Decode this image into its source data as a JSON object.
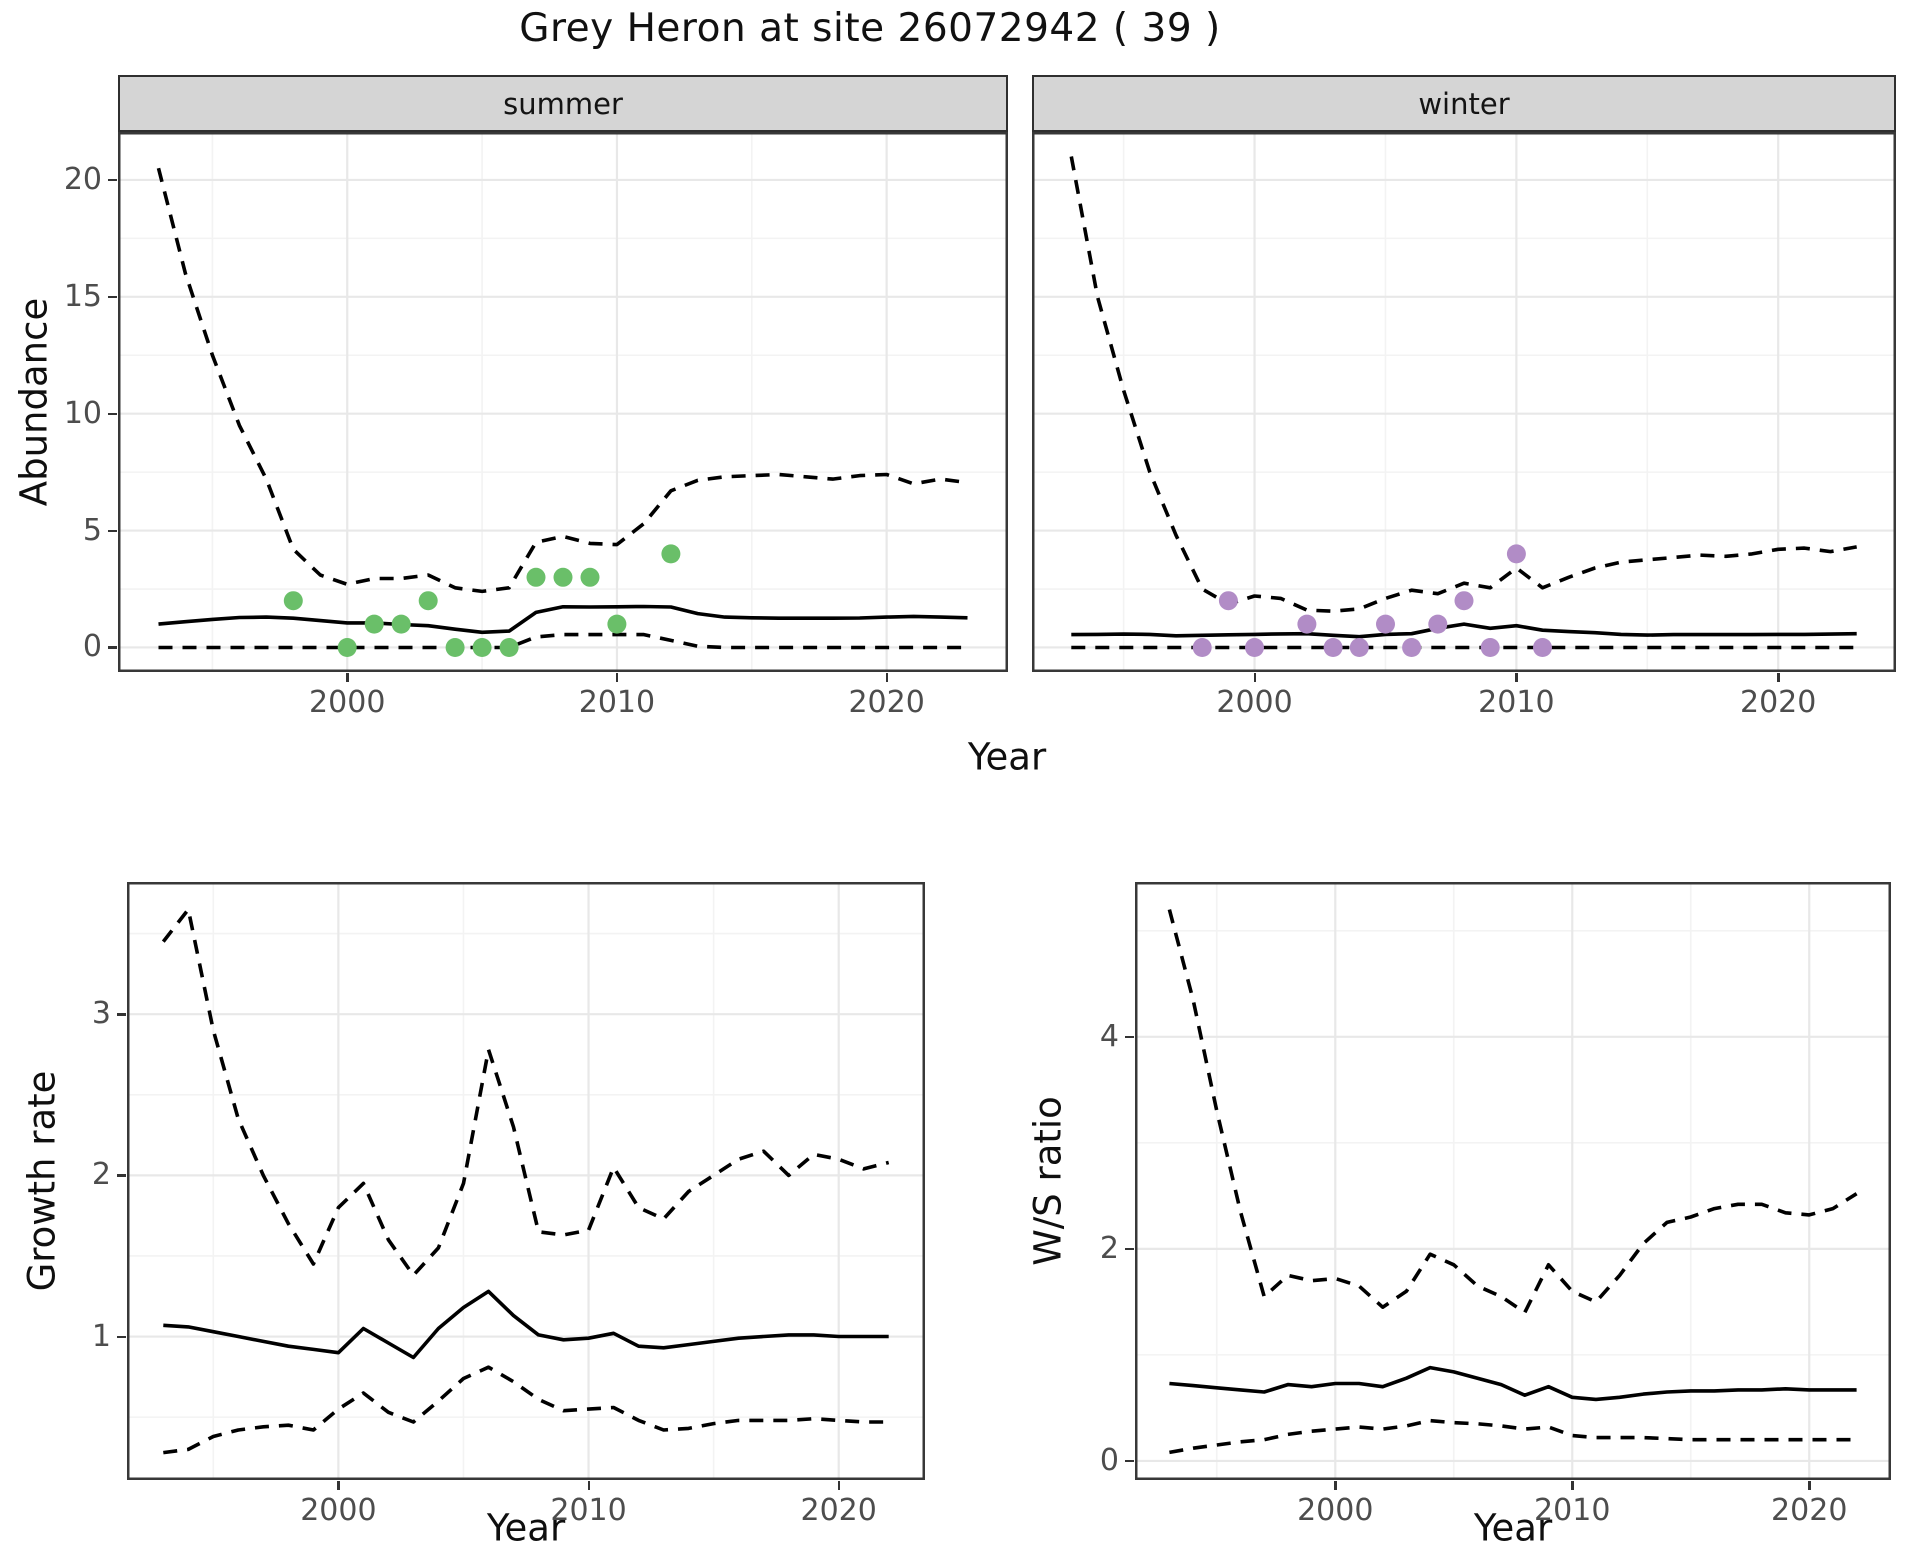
{
  "title": "Grey Heron at site 26072942 ( 39 )",
  "colors": {
    "summer_point": "#6abf69",
    "winter_point": "#b18cc6",
    "line": "#000000",
    "grid_major": "#e8e8e8",
    "grid_minor": "#f3f3f3",
    "panel_border": "#383838",
    "strip_fill": "#d5d5d5",
    "axis_text": "#4d4d4d"
  },
  "chart_data": [
    {
      "id": "abundance_summer",
      "type": "line",
      "facet": "summer",
      "xlabel": "Year",
      "ylabel": "Abundance",
      "xlim": [
        1991.5,
        2024.5
      ],
      "ylim": [
        -1.05,
        22.05
      ],
      "xticks": [
        2000,
        2010,
        2020
      ],
      "xminor": [
        1995,
        2005,
        2015
      ],
      "yticks": [
        0,
        5,
        10,
        15,
        20
      ],
      "yminor": [
        2.5,
        7.5,
        12.5,
        17.5
      ],
      "years": [
        1993,
        1994,
        1995,
        1996,
        1997,
        1998,
        1999,
        2000,
        2001,
        2002,
        2003,
        2004,
        2005,
        2006,
        2007,
        2008,
        2009,
        2010,
        2011,
        2012,
        2013,
        2014,
        2015,
        2016,
        2017,
        2018,
        2019,
        2020,
        2021,
        2022,
        2023
      ],
      "upper_ci": [
        20.5,
        16,
        12.5,
        9.5,
        7.2,
        4.2,
        3.1,
        2.7,
        2.95,
        2.95,
        3.1,
        2.55,
        2.4,
        2.55,
        4.5,
        4.75,
        4.45,
        4.4,
        5.3,
        6.7,
        7.15,
        7.3,
        7.35,
        7.4,
        7.3,
        7.2,
        7.35,
        7.4,
        7.0,
        7.2,
        7.05
      ],
      "median": [
        1.0,
        1.1,
        1.2,
        1.28,
        1.3,
        1.25,
        1.15,
        1.05,
        1.05,
        0.98,
        0.93,
        0.78,
        0.65,
        0.7,
        1.5,
        1.74,
        1.73,
        1.74,
        1.75,
        1.73,
        1.45,
        1.3,
        1.27,
        1.25,
        1.25,
        1.25,
        1.26,
        1.3,
        1.33,
        1.3,
        1.27
      ],
      "lower_ci": [
        0,
        0,
        0,
        0,
        0,
        0,
        0,
        0,
        0,
        0,
        0,
        0,
        0,
        0,
        0.45,
        0.55,
        0.55,
        0.55,
        0.55,
        0.3,
        0.05,
        0,
        0,
        0,
        0,
        0,
        0,
        0,
        0,
        0,
        0
      ],
      "obs_years": [
        1998,
        2000,
        2001,
        2002,
        2003,
        2004,
        2005,
        2006,
        2007,
        2008,
        2009,
        2010,
        2012
      ],
      "obs_values": [
        2,
        0,
        1,
        1,
        2,
        0,
        0,
        0,
        3,
        3,
        3,
        1,
        4
      ],
      "point_color": "#6abf69"
    },
    {
      "id": "abundance_winter",
      "type": "line",
      "facet": "winter",
      "xlabel": "Year",
      "ylabel": "Abundance",
      "xlim": [
        1991.5,
        2024.5
      ],
      "ylim": [
        -1.05,
        22.05
      ],
      "xticks": [
        2000,
        2010,
        2020
      ],
      "xminor": [
        1995,
        2005,
        2015
      ],
      "yticks": [
        0,
        5,
        10,
        15,
        20
      ],
      "yminor": [
        2.5,
        7.5,
        12.5,
        17.5
      ],
      "years": [
        1993,
        1994,
        1995,
        1996,
        1997,
        1998,
        1999,
        2000,
        2001,
        2002,
        2003,
        2004,
        2005,
        2006,
        2007,
        2008,
        2009,
        2010,
        2011,
        2012,
        2013,
        2014,
        2015,
        2016,
        2017,
        2018,
        2019,
        2020,
        2021,
        2022,
        2023
      ],
      "upper_ci": [
        21,
        15,
        11,
        7.5,
        4.8,
        2.5,
        1.85,
        2.2,
        2.1,
        1.6,
        1.55,
        1.65,
        2.1,
        2.45,
        2.3,
        2.75,
        2.55,
        3.4,
        2.55,
        3.0,
        3.4,
        3.65,
        3.75,
        3.85,
        3.95,
        3.9,
        4.0,
        4.2,
        4.25,
        4.1,
        4.3
      ],
      "median": [
        0.55,
        0.56,
        0.57,
        0.56,
        0.5,
        0.52,
        0.54,
        0.56,
        0.58,
        0.59,
        0.52,
        0.46,
        0.56,
        0.59,
        0.82,
        1.0,
        0.82,
        0.93,
        0.74,
        0.68,
        0.63,
        0.56,
        0.53,
        0.55,
        0.55,
        0.55,
        0.55,
        0.56,
        0.56,
        0.57,
        0.59
      ],
      "lower_ci": [
        0,
        0,
        0,
        0,
        0,
        0,
        0,
        0,
        0,
        0,
        0,
        0,
        0,
        0,
        0,
        0,
        0,
        0,
        0,
        0,
        0,
        0,
        0,
        0,
        0,
        0,
        0,
        0,
        0,
        0,
        0
      ],
      "obs_years": [
        1998,
        1999,
        2000,
        2002,
        2003,
        2004,
        2005,
        2006,
        2007,
        2008,
        2009,
        2010,
        2011
      ],
      "obs_values": [
        0,
        2,
        0,
        1,
        0,
        0,
        1,
        0,
        1,
        2,
        0,
        4,
        0
      ],
      "point_color": "#b18cc6"
    },
    {
      "id": "growth_rate",
      "type": "line",
      "facet": "",
      "xlabel": "Year",
      "ylabel": "Growth rate",
      "xlim": [
        1991.55,
        2023.45
      ],
      "ylim": [
        0.11,
        3.82
      ],
      "xticks": [
        2000,
        2010,
        2020
      ],
      "xminor": [
        1995,
        2005,
        2015
      ],
      "yticks": [
        1,
        2,
        3
      ],
      "yminor": [
        0.5,
        1.5,
        2.5,
        3.5
      ],
      "years": [
        1993,
        1994,
        1995,
        1996,
        1997,
        1998,
        1999,
        2000,
        2001,
        2002,
        2003,
        2004,
        2005,
        2006,
        2007,
        2008,
        2009,
        2010,
        2011,
        2012,
        2013,
        2014,
        2015,
        2016,
        2017,
        2018,
        2019,
        2020,
        2021,
        2022
      ],
      "upper_ci": [
        3.45,
        3.65,
        2.9,
        2.35,
        2.0,
        1.7,
        1.45,
        1.8,
        1.95,
        1.6,
        1.38,
        1.55,
        1.95,
        2.78,
        2.3,
        1.65,
        1.63,
        1.66,
        2.05,
        1.8,
        1.73,
        1.9,
        2.0,
        2.1,
        2.15,
        2.0,
        2.13,
        2.1,
        2.04,
        2.08
      ],
      "median": [
        1.07,
        1.06,
        1.03,
        1.0,
        0.97,
        0.94,
        0.92,
        0.9,
        1.05,
        0.96,
        0.87,
        1.05,
        1.18,
        1.28,
        1.13,
        1.01,
        0.98,
        0.99,
        1.02,
        0.94,
        0.93,
        0.95,
        0.97,
        0.99,
        1.0,
        1.01,
        1.01,
        1.0,
        1.0,
        1.0
      ],
      "lower_ci": [
        0.28,
        0.3,
        0.38,
        0.42,
        0.44,
        0.45,
        0.42,
        0.55,
        0.65,
        0.53,
        0.47,
        0.6,
        0.74,
        0.81,
        0.72,
        0.61,
        0.54,
        0.55,
        0.56,
        0.48,
        0.42,
        0.43,
        0.46,
        0.48,
        0.48,
        0.48,
        0.49,
        0.48,
        0.47,
        0.47
      ]
    },
    {
      "id": "ws_ratio",
      "type": "line",
      "facet": "",
      "xlabel": "Year",
      "ylabel": "W/S ratio",
      "xlim": [
        1991.55,
        2023.45
      ],
      "ylim": [
        -0.18,
        5.46
      ],
      "xticks": [
        2000,
        2010,
        2020
      ],
      "xminor": [
        1995,
        2005,
        2015
      ],
      "yticks": [
        0,
        2,
        4
      ],
      "yminor": [
        1,
        3,
        5
      ],
      "years": [
        1993,
        1994,
        1995,
        1996,
        1997,
        1998,
        1999,
        2000,
        2001,
        2002,
        2003,
        2004,
        2005,
        2006,
        2007,
        2008,
        2009,
        2010,
        2011,
        2012,
        2013,
        2014,
        2015,
        2016,
        2017,
        2018,
        2019,
        2020,
        2021,
        2022
      ],
      "upper_ci": [
        5.2,
        4.35,
        3.3,
        2.35,
        1.55,
        1.75,
        1.7,
        1.72,
        1.65,
        1.45,
        1.6,
        1.95,
        1.85,
        1.65,
        1.55,
        1.4,
        1.85,
        1.6,
        1.5,
        1.75,
        2.05,
        2.25,
        2.3,
        2.38,
        2.42,
        2.42,
        2.34,
        2.32,
        2.38,
        2.52
      ],
      "median": [
        0.73,
        0.71,
        0.69,
        0.67,
        0.65,
        0.72,
        0.7,
        0.73,
        0.73,
        0.7,
        0.78,
        0.88,
        0.84,
        0.78,
        0.72,
        0.62,
        0.7,
        0.6,
        0.58,
        0.6,
        0.63,
        0.65,
        0.66,
        0.66,
        0.67,
        0.67,
        0.68,
        0.67,
        0.67,
        0.67
      ],
      "lower_ci": [
        0.08,
        0.12,
        0.15,
        0.18,
        0.2,
        0.25,
        0.28,
        0.3,
        0.32,
        0.3,
        0.33,
        0.38,
        0.36,
        0.35,
        0.33,
        0.3,
        0.32,
        0.24,
        0.22,
        0.22,
        0.22,
        0.21,
        0.2,
        0.2,
        0.2,
        0.2,
        0.2,
        0.2,
        0.2,
        0.2
      ]
    }
  ]
}
